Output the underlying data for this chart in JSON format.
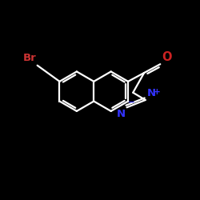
{
  "background_color": "#000000",
  "bond_color": "#000000",
  "line_color": "#ffffff",
  "br_color": "#cc3333",
  "o_color": "#cc2222",
  "n_color": "#3333ff",
  "lw": 1.6,
  "dbo": 0.018,
  "b": 0.16,
  "xlim": [
    -0.1,
    1.5
  ],
  "ylim": [
    -0.55,
    0.85
  ],
  "figsize": [
    2.5,
    2.5
  ],
  "dpi": 100
}
